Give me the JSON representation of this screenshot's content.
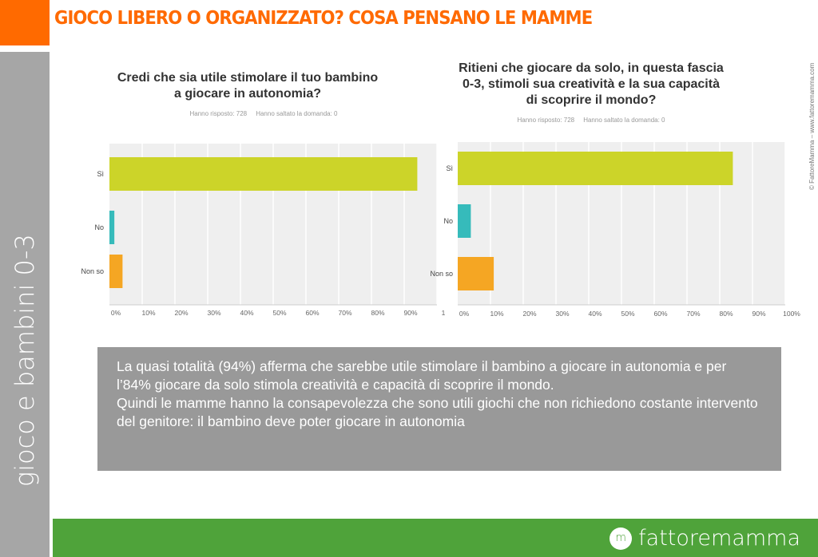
{
  "header": {
    "title": "GIOCO LIBERO O ORGANIZZATO? COSA PENSANO LE MAMME"
  },
  "sidebar": {
    "label": "gioco e bambini 0-3"
  },
  "copyright": "© FattoreMamma – www.fattoremamma.com",
  "summary": {
    "line1": "La quasi totalità (94%) afferma che sarebbe utile stimolare il bambino a giocare in autonomia e per l’84% giocare da solo stimola creatività e capacità di scoprire il mondo.",
    "line2": "Quindi le mamme hanno la consapevolezza che sono utili giochi che non richiedono costante intervento del genitore: il bambino deve poter giocare in autonomia"
  },
  "footer": {
    "logo_letter": "m",
    "logo_text": "fattoremamma"
  },
  "colors": {
    "accent": "#ff6a00",
    "footer": "#4fa33a",
    "si": "#ccd429",
    "no": "#36bbbb",
    "non_so": "#f5a623"
  },
  "chart_data": [
    {
      "type": "bar",
      "orientation": "horizontal",
      "title_line1": "Credi che sia utile stimolare il tuo bambino",
      "title_line2": "a giocare in autonomia?",
      "meta": "Hanno risposto: 728     Hanno saltato la domanda: 0",
      "categories": [
        "Sì",
        "No",
        "Non so"
      ],
      "values": [
        94,
        1.5,
        4
      ],
      "xlim": [
        0,
        100
      ],
      "tick_labels": [
        "0%",
        "10%",
        "20%",
        "30%",
        "40%",
        "50%",
        "60%",
        "70%",
        "80%",
        "90%",
        "1"
      ],
      "grid": true
    },
    {
      "type": "bar",
      "orientation": "horizontal",
      "title_line1": "Ritieni che giocare da solo, in questa fascia",
      "title_line2": "0-3, stimoli sua creatività e la sua capacità",
      "title_line3": "di scoprire il mondo?",
      "meta": "Hanno risposto: 728     Hanno saltato la domanda: 0",
      "categories": [
        "Sì",
        "No",
        "Non so"
      ],
      "values": [
        84,
        4,
        11
      ],
      "xlim": [
        0,
        100
      ],
      "tick_labels": [
        "0%",
        "10%",
        "20%",
        "30%",
        "40%",
        "50%",
        "60%",
        "70%",
        "80%",
        "90%",
        "100%"
      ],
      "grid": true
    }
  ]
}
